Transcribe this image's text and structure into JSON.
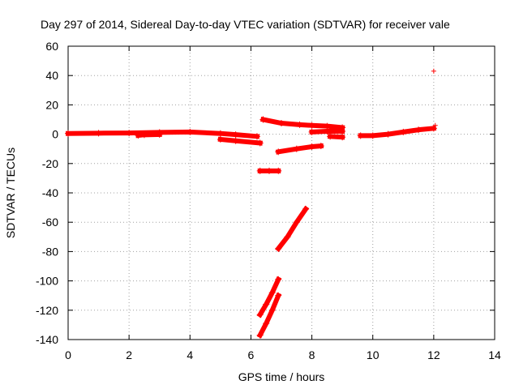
{
  "chart_data": {
    "type": "scatter",
    "title": "Day 297 of 2014, Sidereal Day-to-day VTEC variation (SDTVAR) for receiver vale",
    "xlabel": "GPS time / hours",
    "ylabel": "SDTVAR / TECUs",
    "xlim": [
      0,
      14
    ],
    "ylim": [
      -140,
      60
    ],
    "xticks": [
      "0",
      "2",
      "4",
      "6",
      "8",
      "10",
      "12",
      "14"
    ],
    "yticks": [
      "60",
      "40",
      "20",
      "0",
      "-20",
      "-40",
      "-60",
      "-80",
      "-100",
      "-120",
      "-140"
    ],
    "xtick_values": [
      0,
      2,
      4,
      6,
      8,
      10,
      12,
      14
    ],
    "ytick_values": [
      60,
      40,
      20,
      0,
      -20,
      -40,
      -60,
      -80,
      -100,
      -120,
      -140
    ],
    "grid": true,
    "marker": "+",
    "color": "#ff0000",
    "series": [
      {
        "segments": [
          [
            [
              0.0,
              0.5
            ],
            [
              1.0,
              0.7
            ],
            [
              2.0,
              0.8
            ],
            [
              3.0,
              1.2
            ],
            [
              4.0,
              1.5
            ],
            [
              5.0,
              0.5
            ],
            [
              5.5,
              -0.3
            ],
            [
              6.2,
              -1.5
            ]
          ],
          [
            [
              2.3,
              -0.8
            ],
            [
              2.5,
              -0.4
            ],
            [
              3.0,
              -0.2
            ]
          ],
          [
            [
              5.0,
              -3.5
            ],
            [
              5.5,
              -4.5
            ],
            [
              6.3,
              -6.0
            ]
          ],
          [
            [
              6.4,
              10.0
            ],
            [
              7.0,
              7.5
            ],
            [
              7.6,
              6.5
            ],
            [
              8.0,
              6.0
            ],
            [
              8.5,
              5.5
            ],
            [
              9.0,
              4.5
            ]
          ],
          [
            [
              6.9,
              -12.0
            ],
            [
              7.5,
              -10.0
            ],
            [
              8.0,
              -8.5
            ],
            [
              8.3,
              -8.0
            ]
          ],
          [
            [
              6.3,
              -25.0
            ],
            [
              6.6,
              -25.0
            ],
            [
              6.9,
              -25.0
            ]
          ],
          [
            [
              8.0,
              1.5
            ],
            [
              8.5,
              2.0
            ],
            [
              9.0,
              2.0
            ]
          ],
          [
            [
              8.6,
              -1.5
            ],
            [
              9.0,
              -2.0
            ]
          ],
          [
            [
              9.6,
              -1.0
            ],
            [
              10.0,
              -1.0
            ],
            [
              10.5,
              0.0
            ],
            [
              11.0,
              1.5
            ],
            [
              11.5,
              3.0
            ],
            [
              12.0,
              4.0
            ]
          ],
          [
            [
              6.9,
              -78.0
            ],
            [
              7.2,
              -70.0
            ],
            [
              7.5,
              -60.0
            ],
            [
              7.8,
              -51.0
            ]
          ],
          [
            [
              6.3,
              -123.0
            ],
            [
              6.5,
              -116.0
            ],
            [
              6.7,
              -108.0
            ],
            [
              6.9,
              -99.0
            ]
          ],
          [
            [
              6.3,
              -137.0
            ],
            [
              6.5,
              -129.0
            ],
            [
              6.7,
              -120.0
            ],
            [
              6.9,
              -110.0
            ]
          ]
        ],
        "points": [
          [
            12.0,
            43.0
          ],
          [
            12.05,
            6.0
          ]
        ]
      }
    ]
  }
}
